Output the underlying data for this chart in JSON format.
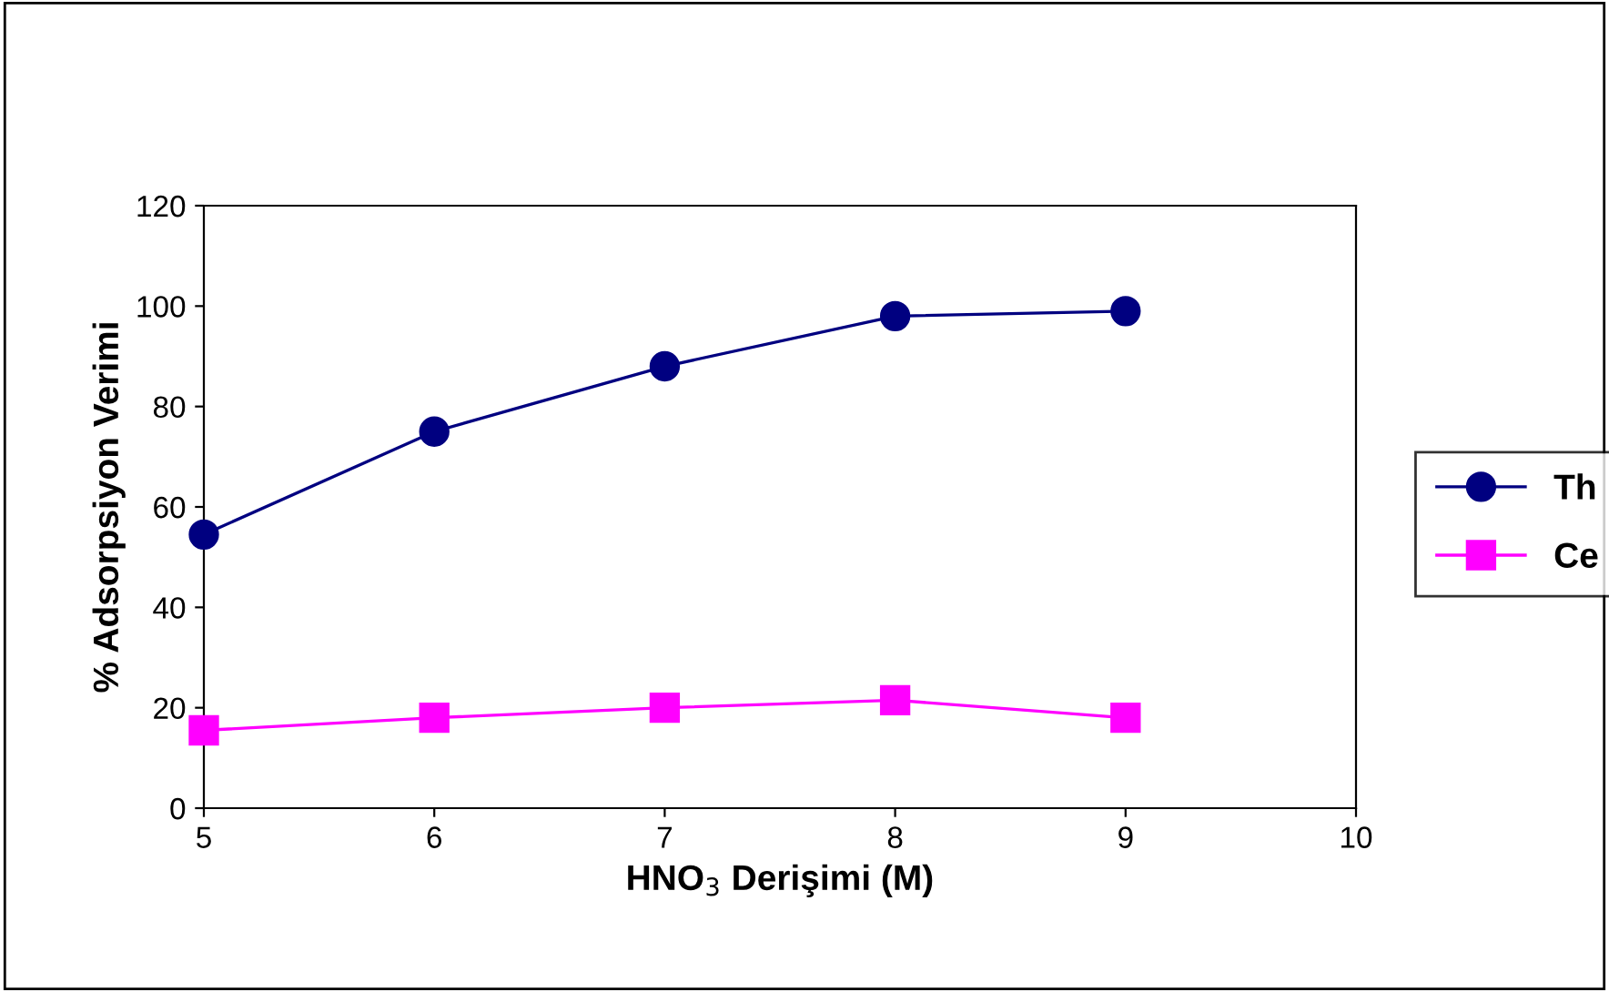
{
  "chart_data": {
    "type": "line",
    "xlabel": "HNO$_{3}$ Derişimi (M)",
    "ylabel": "% Adsorpsiyon Verimi",
    "x": [
      5,
      6,
      7,
      8,
      9
    ],
    "series": [
      {
        "name": "Th",
        "color": "#000080",
        "values": [
          54.5,
          75,
          88,
          98,
          99
        ],
        "marker": "circle"
      },
      {
        "name": "Ce",
        "color": "#ff00ff",
        "values": [
          15.5,
          18,
          20,
          21.5,
          18
        ],
        "marker": "square"
      }
    ],
    "xlim": [
      5,
      10
    ],
    "xticks": [
      5,
      6,
      7,
      8,
      9,
      10
    ],
    "ylim": [
      0,
      120
    ],
    "yticks": [
      0,
      20,
      40,
      60,
      80,
      100,
      120
    ],
    "grid": false,
    "legend": "right",
    "line_style": "solid"
  }
}
